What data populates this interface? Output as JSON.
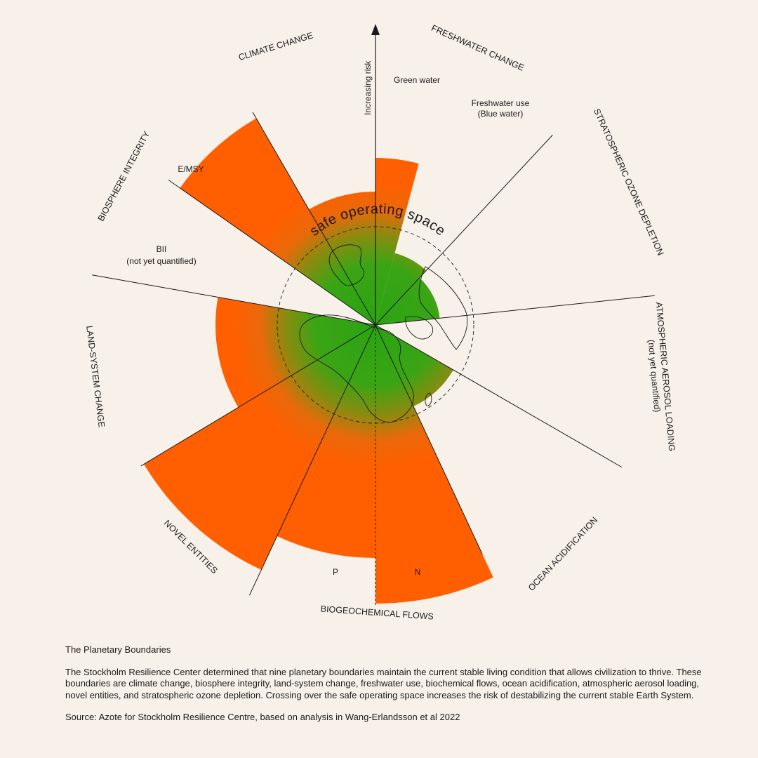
{
  "diagram": {
    "title": "The Planetary Boundaries",
    "axis_label": "Increasing risk",
    "center_label": "safe operating space",
    "colors": {
      "background": "#f7f1ea",
      "safe": "#2aa313",
      "risk": "#ff5f00",
      "line": "#1a1a1a"
    },
    "boundaries": [
      {
        "name": "CLIMATE CHANGE"
      },
      {
        "name": "FRESHWATER CHANGE",
        "subs": [
          "Green water",
          "Freshwater use (Blue water)"
        ]
      },
      {
        "name": "STRATOSPHERIC OZONE DEPLETION"
      },
      {
        "name": "ATMOSPHERIC AEROSOL LOADING",
        "note": "(not yet quantified)"
      },
      {
        "name": "OCEAN ACIDIFICATION"
      },
      {
        "name": "BIOGEOCHEMICAL FLOWS",
        "subs": [
          "P",
          "N"
        ]
      },
      {
        "name": "NOVEL ENTITIES"
      },
      {
        "name": "LAND-SYSTEM CHANGE"
      },
      {
        "name": "BIOSPHERE INTEGRITY",
        "subs": [
          "E/MSY",
          "BII"
        ],
        "note": "(not yet quantified)"
      }
    ],
    "sub_labels": {
      "green_water": "Green water",
      "freshwater_use_1": "Freshwater use",
      "freshwater_use_2": "(Blue water)",
      "p": "P",
      "n": "N",
      "emsy": "E/MSY",
      "bii_1": "BII",
      "bii_2": "(not yet quantified)"
    },
    "aerosol_note": "(not yet quantified)"
  },
  "caption": {
    "title": "The Planetary Boundaries",
    "body": "The Stockholm Resilience Center determined that nine planetary boundaries maintain the current stable living condition that allows civilization to thrive. These boundaries are climate change, biosphere integrity, land-system change, freshwater use, biochemical flows, ocean acidification, atmospheric aerosol loading, novel entities, and stratospheric ozone depletion. Crossing over the safe operating space increases the risk of destabilizing the current stable Earth System.",
    "source": "Source: Azote for Stockholm Resilience Centre, based on analysis in Wang-Erlandsson et al 2022"
  }
}
